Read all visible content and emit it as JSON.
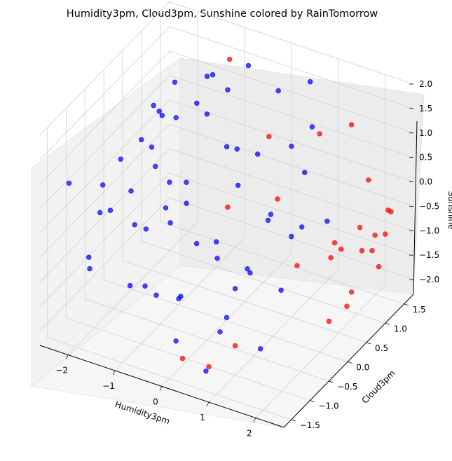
{
  "chart_data": {
    "type": "scatter",
    "projection": "3d",
    "title": "Humidity3pm, Cloud3pm, Sunshine colored by RainTomorrow",
    "xlabel": "Humidity3pm",
    "ylabel": "Cloud3pm",
    "zlabel": "Sunshine",
    "xlim": [
      -2.6,
      2.6
    ],
    "ylim": [
      -1.7,
      1.75
    ],
    "zlim": [
      -2.3,
      2.0
    ],
    "x_ticks": [
      "−2",
      "−1",
      "0",
      "1",
      "2"
    ],
    "y_ticks": [
      "−1.5",
      "−1.0",
      "−0.5",
      "0.0",
      "0.5",
      "1.0",
      "1.5"
    ],
    "z_ticks": [
      "−2.0",
      "−1.5",
      "−1.0",
      "−0.5",
      "0.0",
      "0.5",
      "1.0",
      "1.5",
      "2.0"
    ],
    "x_tick_values": [
      -2,
      -1,
      0,
      1,
      2
    ],
    "y_tick_values": [
      -1.5,
      -1.0,
      -0.5,
      0.0,
      0.5,
      1.0,
      1.5
    ],
    "z_tick_values": [
      -2.0,
      -1.5,
      -1.0,
      -0.5,
      0.0,
      0.5,
      1.0,
      1.5,
      2.0
    ],
    "grid": true,
    "series": [
      {
        "color": "#0000ff",
        "points": [
          [
            -2.45,
            1.7,
            0.45
          ],
          [
            -2.4,
            1.3,
            0.1
          ],
          [
            -2.3,
            0.9,
            -0.2
          ],
          [
            -2.2,
            0.5,
            0.3
          ],
          [
            -2.1,
            0.1,
            -0.4
          ],
          [
            -2.0,
            -0.3,
            0.6
          ],
          [
            -1.9,
            -0.7,
            -0.1
          ],
          [
            -1.8,
            -1.1,
            0.2
          ],
          [
            -1.7,
            -1.5,
            -0.6
          ],
          [
            -1.6,
            1.5,
            1.0
          ],
          [
            -1.5,
            1.1,
            0.8
          ],
          [
            -1.4,
            0.7,
            -0.9
          ],
          [
            -1.3,
            0.3,
            1.2
          ],
          [
            -1.2,
            -0.1,
            -0.3
          ],
          [
            -1.1,
            -0.5,
            0.9
          ],
          [
            -1.0,
            -0.9,
            -1.2
          ],
          [
            -0.9,
            -1.3,
            0.4
          ],
          [
            -0.8,
            1.6,
            1.4
          ],
          [
            -0.7,
            1.2,
            -0.7
          ],
          [
            -0.6,
            0.8,
            1.6
          ],
          [
            -0.5,
            0.4,
            -1.5
          ],
          [
            -0.4,
            0.0,
            1.8
          ],
          [
            -0.3,
            -0.4,
            -0.5
          ],
          [
            -0.2,
            -0.8,
            1.1
          ],
          [
            -0.1,
            -1.2,
            -1.8
          ],
          [
            0.0,
            1.4,
            1.3
          ],
          [
            0.1,
            1.0,
            -1.0
          ],
          [
            0.2,
            0.6,
            0.7
          ],
          [
            0.3,
            0.2,
            -1.3
          ],
          [
            0.4,
            -0.2,
            1.5
          ],
          [
            0.5,
            -0.6,
            -1.6
          ],
          [
            0.6,
            -1.0,
            0.3
          ],
          [
            0.7,
            -1.4,
            -2.0
          ],
          [
            0.8,
            1.3,
            0.9
          ],
          [
            0.9,
            0.9,
            -0.8
          ],
          [
            1.0,
            0.5,
            1.2
          ],
          [
            1.1,
            0.1,
            -1.4
          ],
          [
            1.2,
            -0.3,
            0.5
          ],
          [
            1.3,
            -0.7,
            -1.9
          ],
          [
            1.4,
            -1.1,
            0.0
          ],
          [
            -2.3,
            -1.3,
            0.8
          ],
          [
            -2.0,
            1.0,
            -0.9
          ],
          [
            -1.7,
            0.2,
            1.4
          ],
          [
            -1.4,
            -0.8,
            -1.4
          ],
          [
            -1.1,
            1.4,
            -0.2
          ],
          [
            -0.8,
            -0.2,
            -1.9
          ],
          [
            -0.5,
            -1.5,
            0.6
          ],
          [
            -0.2,
            0.5,
            -2.1
          ],
          [
            0.1,
            -1.6,
            1.0
          ],
          [
            0.4,
            1.6,
            -0.4
          ],
          [
            -2.2,
            -0.9,
            -1.0
          ],
          [
            -1.9,
            0.6,
            0.9
          ],
          [
            -1.5,
            -1.4,
            1.1
          ],
          [
            -1.0,
            0.9,
            1.7
          ],
          [
            -0.6,
            -1.1,
            -1.1
          ],
          [
            0.2,
            -1.5,
            -0.6
          ],
          [
            0.6,
            1.5,
            1.6
          ],
          [
            1.0,
            -1.4,
            -1.1
          ],
          [
            1.6,
            0.7,
            -0.3
          ],
          [
            1.8,
            -0.5,
            0.4
          ]
        ]
      },
      {
        "color": "#ff0000",
        "points": [
          [
            2.2,
            1.5,
            -1.0
          ],
          [
            2.3,
            1.2,
            -1.4
          ],
          [
            2.4,
            0.9,
            -0.8
          ],
          [
            2.1,
            0.6,
            -1.8
          ],
          [
            2.0,
            0.3,
            -0.6
          ],
          [
            1.9,
            1.6,
            -1.2
          ],
          [
            2.2,
            0.0,
            -1.6
          ],
          [
            2.4,
            1.4,
            -0.4
          ],
          [
            1.8,
            1.1,
            -2.0
          ],
          [
            2.3,
            0.7,
            -0.2
          ],
          [
            1.7,
            1.5,
            -1.5
          ],
          [
            2.0,
            1.3,
            0.2
          ],
          [
            1.6,
            0.9,
            -0.9
          ],
          [
            2.1,
            1.7,
            -0.7
          ],
          [
            1.5,
            1.2,
            -1.3
          ],
          [
            0.8,
            1.5,
            0.6
          ],
          [
            0.3,
            1.0,
            -0.5
          ],
          [
            -0.2,
            1.4,
            0.3
          ],
          [
            -0.6,
            0.8,
            -0.8
          ],
          [
            -1.2,
            1.6,
            1.4
          ],
          [
            0.6,
            -1.2,
            -2.1
          ],
          [
            1.0,
            -1.0,
            -1.7
          ],
          [
            0.2,
            -1.4,
            -1.9
          ],
          [
            1.2,
            0.4,
            -1.1
          ],
          [
            1.4,
            1.6,
            0.9
          ]
        ]
      }
    ]
  }
}
